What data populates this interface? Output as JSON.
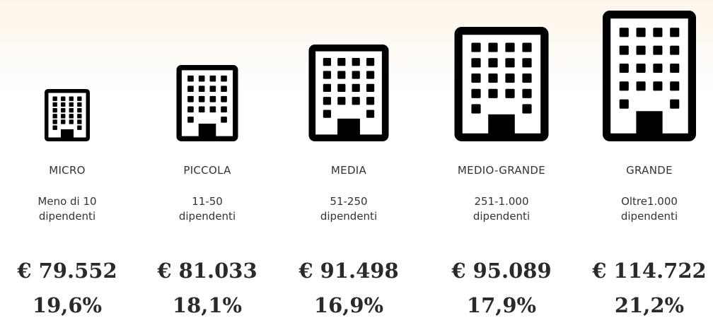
{
  "columns": [
    {
      "name": "MICRO",
      "lines": [
        "Meno di 10",
        "dipendenti"
      ],
      "amount": "€ 79.552",
      "share": "19,6%"
    },
    {
      "name": "PICCOLA",
      "lines": [
        "11-50",
        "dipendenti"
      ],
      "amount": "€ 81.033",
      "share": "18,1%"
    },
    {
      "name": "MEDIA",
      "lines": [
        "51-250",
        "dipendenti"
      ],
      "amount": "€ 91.498",
      "share": "16,9%"
    },
    {
      "name": "MEDIO-GRANDE",
      "lines": [
        "251-1.000",
        "dipendenti"
      ],
      "amount": "€ 95.089",
      "share": "17,9%"
    },
    {
      "name": "GRANDE",
      "lines": [
        "Oltre1.000",
        "dipendenti"
      ],
      "amount": "€ 114.722",
      "share": "21,2%"
    }
  ]
}
